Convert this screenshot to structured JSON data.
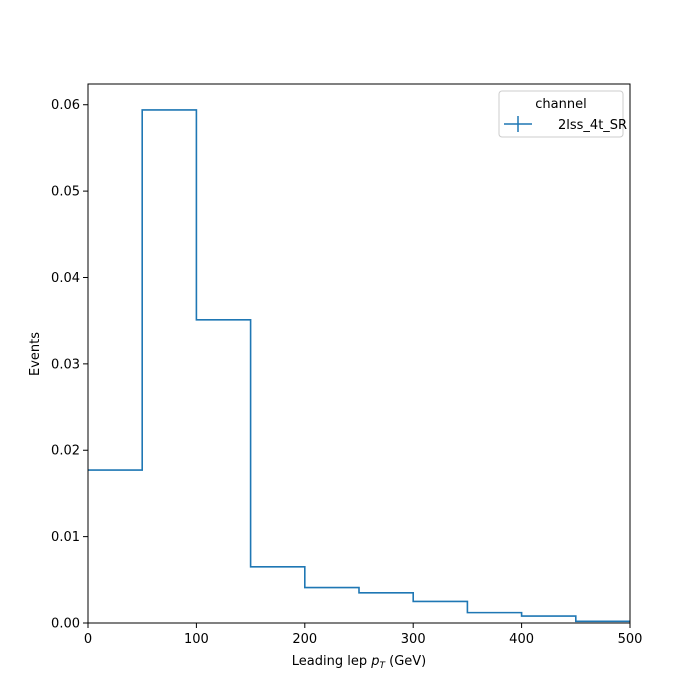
{
  "chart_data": {
    "type": "step",
    "xlabel_main": "Leading lep ",
    "xlabel_var": "p",
    "xlabel_sub": "T",
    "xlabel_unit": " (GeV)",
    "ylabel": "Events",
    "xlim": [
      0,
      500
    ],
    "ylim": [
      0,
      0.0624
    ],
    "xticks": [
      0,
      100,
      200,
      300,
      400,
      500
    ],
    "xtick_labels": [
      "0",
      "100",
      "200",
      "300",
      "400",
      "500"
    ],
    "yticks": [
      0,
      0.01,
      0.02,
      0.03,
      0.04,
      0.05,
      0.06
    ],
    "ytick_labels": [
      "0.00",
      "0.01",
      "0.02",
      "0.03",
      "0.04",
      "0.05",
      "0.06"
    ],
    "legend": {
      "title": "channel",
      "placement": "top-right"
    },
    "series": [
      {
        "name": "2lss_4t_SR",
        "color": "#1f77b4",
        "bin_edges": [
          0,
          50,
          100,
          150,
          200,
          250,
          300,
          350,
          400,
          450,
          500
        ],
        "values": [
          0.0177,
          0.0594,
          0.0351,
          0.0065,
          0.0041,
          0.0035,
          0.0025,
          0.0012,
          0.0008,
          0.0002
        ]
      }
    ]
  }
}
